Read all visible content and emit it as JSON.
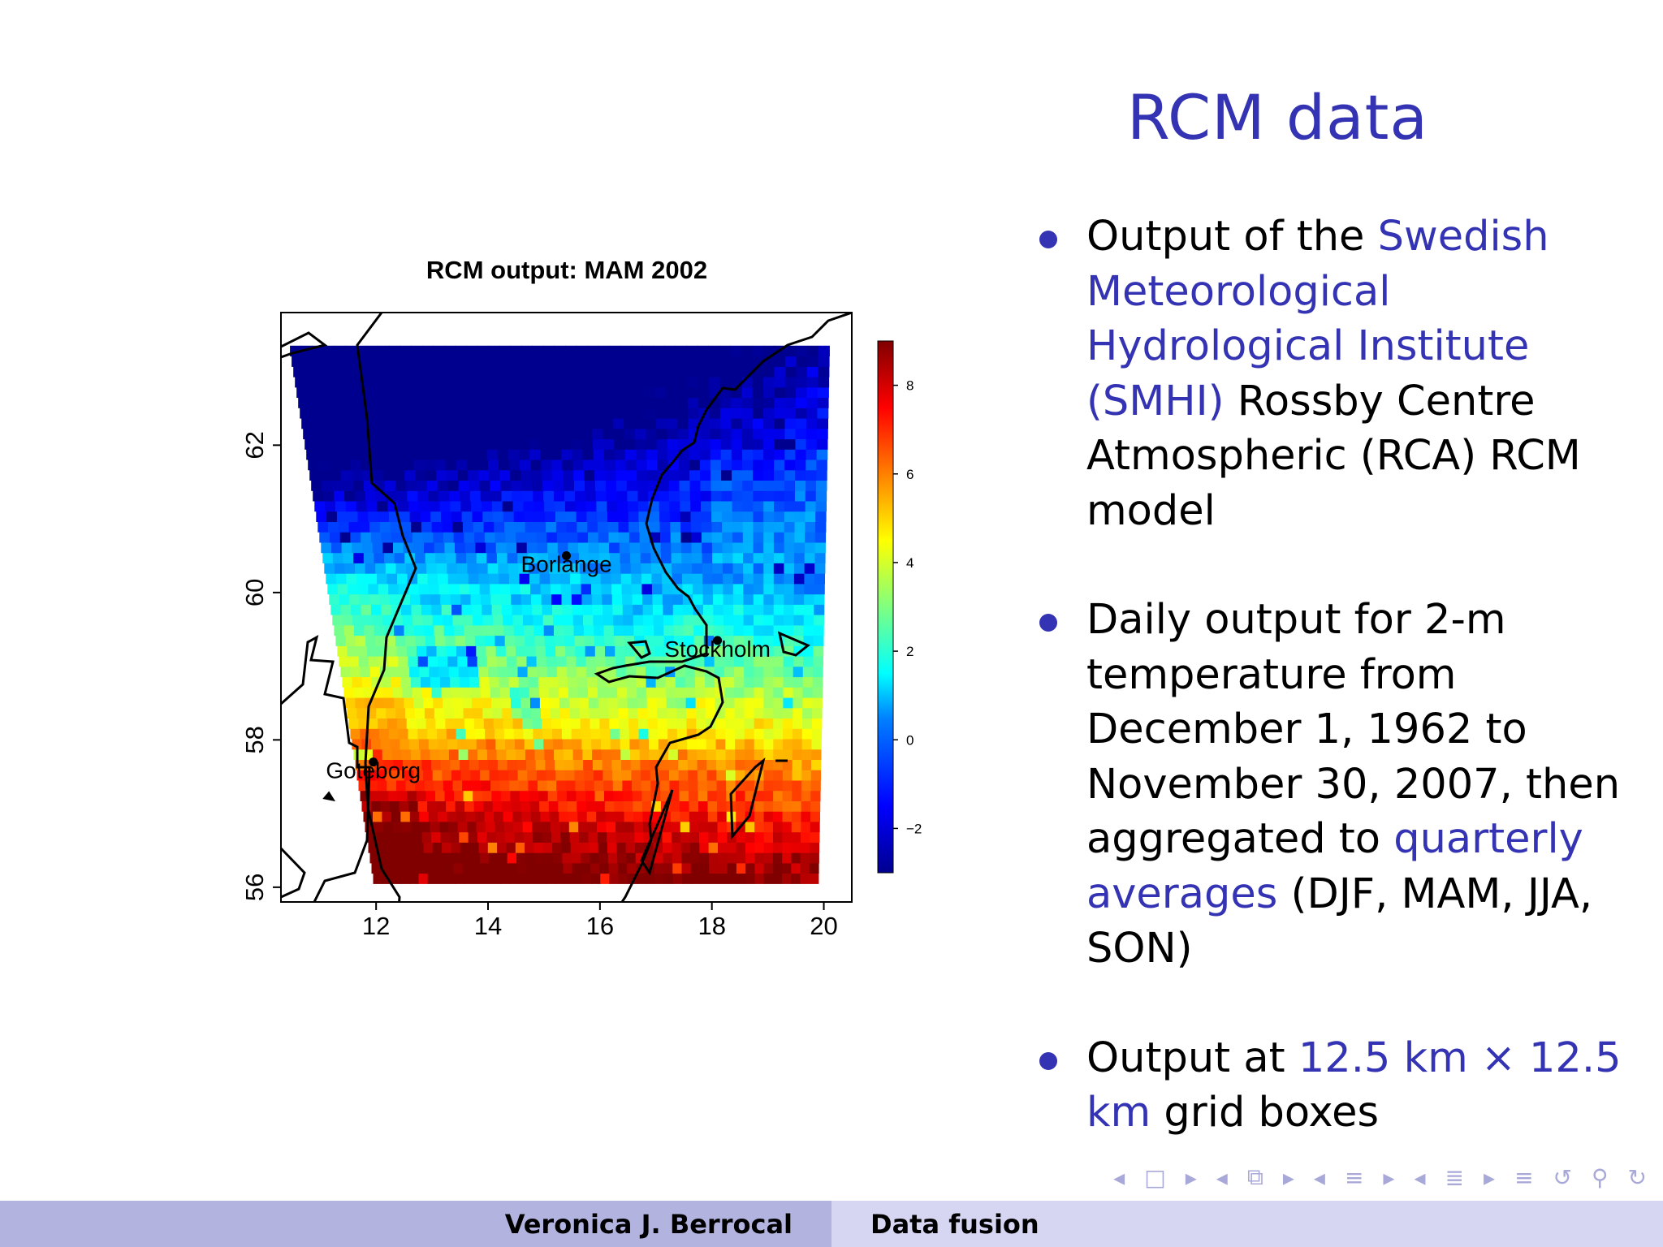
{
  "slide": {
    "title": "RCM data",
    "bullets": [
      {
        "parts": [
          {
            "text": "Output of the ",
            "hl": false
          },
          {
            "text": "Swedish Meteorological Hydrological Institute (SMHI)",
            "hl": true
          },
          {
            "text": " Rossby Centre Atmospheric (RCA) RCM model",
            "hl": false
          }
        ]
      },
      {
        "parts": [
          {
            "text": "Daily output for 2-m temperature from December 1, 1962 to November 30, 2007, then aggregated to ",
            "hl": false
          },
          {
            "text": "quarterly averages",
            "hl": true
          },
          {
            "text": " (DJF, MAM, JJA, SON)",
            "hl": false
          }
        ]
      },
      {
        "parts": [
          {
            "text": "Output at ",
            "hl": false
          },
          {
            "text": "12.5 km × 12.5 km",
            "hl": true
          },
          {
            "text": " grid boxes",
            "hl": false
          }
        ]
      }
    ]
  },
  "chart_data": {
    "type": "heatmap",
    "title": "RCM output: MAM 2002",
    "xlabel": "",
    "ylabel": "",
    "xlim": [
      10.3,
      20.5
    ],
    "ylim": [
      55.8,
      63.8
    ],
    "x_ticks": [
      "12",
      "14",
      "16",
      "18",
      "20"
    ],
    "y_ticks": [
      "56",
      "58",
      "60",
      "62"
    ],
    "colorbar": {
      "range": [
        -3,
        9
      ],
      "ticks": [
        "−2",
        "0",
        "2",
        "4",
        "6",
        "8"
      ]
    },
    "cities": [
      {
        "name": "Borlange",
        "lon": 15.4,
        "lat": 60.5
      },
      {
        "name": "Stockholm",
        "lon": 18.1,
        "lat": 59.35
      },
      {
        "name": "Goteborg",
        "lon": 11.95,
        "lat": 57.7
      }
    ],
    "colors": [
      "#00008f",
      "#0000ff",
      "#0080ff",
      "#00ffff",
      "#80ff80",
      "#ffff00",
      "#ff8000",
      "#ff0000",
      "#800000"
    ]
  },
  "nav": {
    "icons": [
      "nav-prev-frame-icon",
      "nav-frame-icon",
      "nav-next-frame-icon",
      "nav-prev-subsection-icon",
      "nav-subsection-icon",
      "nav-next-subsection-icon",
      "nav-prev-section-icon",
      "nav-section-icon",
      "nav-next-section-icon",
      "nav-prev-slide-icon",
      "nav-slide-icon",
      "nav-next-slide-icon",
      "nav-toc-icon",
      "nav-back-icon",
      "nav-search-icon",
      "nav-forward-icon"
    ]
  },
  "footer": {
    "author": "Veronica J. Berrocal",
    "short_title": "Data fusion"
  }
}
